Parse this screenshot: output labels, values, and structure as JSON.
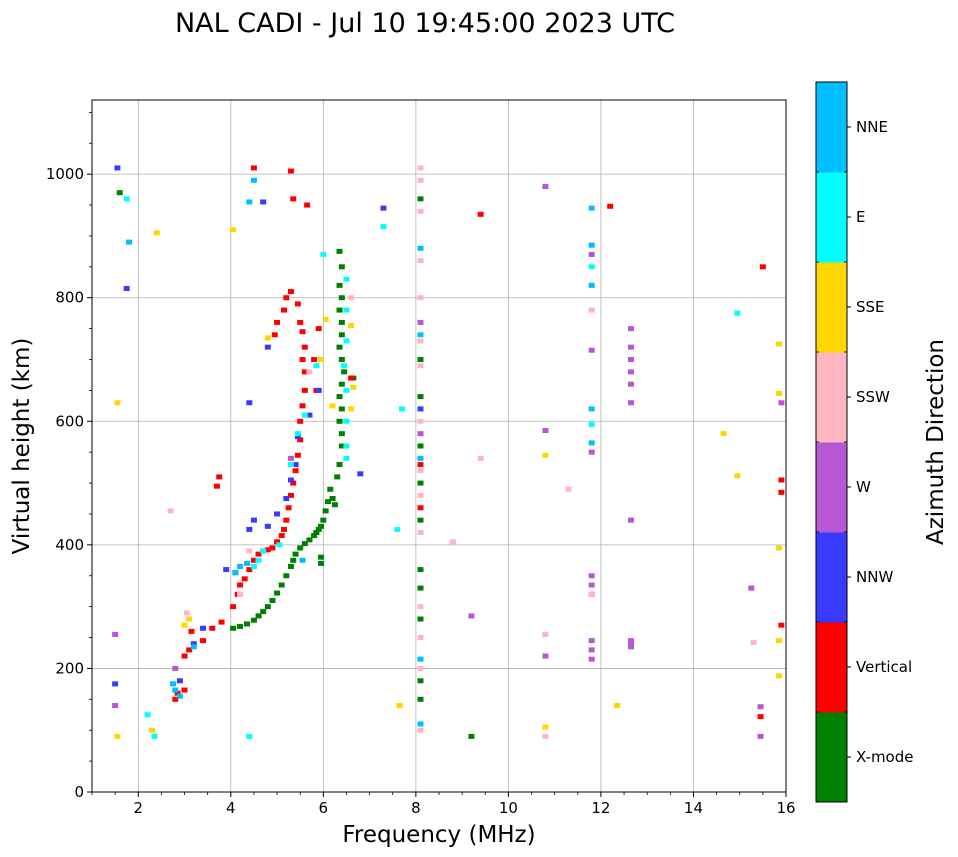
{
  "chart_data": {
    "type": "scatter",
    "title": "NAL CADI - Jul 10 19:45:00 2023 UTC",
    "xlabel": "Frequency (MHz)",
    "ylabel": "Virtual height (km)",
    "xlim": [
      1,
      16
    ],
    "ylim": [
      0,
      1120
    ],
    "xticks": [
      2,
      4,
      6,
      8,
      10,
      12,
      14,
      16
    ],
    "yticks": [
      0,
      200,
      400,
      600,
      800,
      1000
    ],
    "grid": true,
    "colorbar": {
      "label": "Azimuth Direction",
      "categories": [
        {
          "name": "X-mode",
          "color": "#008000"
        },
        {
          "name": "Vertical",
          "color": "#ff0000"
        },
        {
          "name": "NNW",
          "color": "#3a3aff"
        },
        {
          "name": "W",
          "color": "#b657d6"
        },
        {
          "name": "SSW",
          "color": "#ffb6c1"
        },
        {
          "name": "SSE",
          "color": "#ffd700"
        },
        {
          "name": "E",
          "color": "#00ffff"
        },
        {
          "name": "NNE",
          "color": "#00bfff"
        }
      ]
    },
    "series": [
      {
        "name": "X-mode",
        "points": [
          [
            4.05,
            265
          ],
          [
            4.2,
            268
          ],
          [
            4.35,
            272
          ],
          [
            4.5,
            278
          ],
          [
            4.6,
            285
          ],
          [
            4.7,
            292
          ],
          [
            4.8,
            300
          ],
          [
            4.9,
            310
          ],
          [
            5.0,
            322
          ],
          [
            5.1,
            335
          ],
          [
            5.2,
            350
          ],
          [
            5.3,
            365
          ],
          [
            5.35,
            375
          ],
          [
            5.4,
            385
          ],
          [
            5.5,
            395
          ],
          [
            5.6,
            402
          ],
          [
            5.7,
            408
          ],
          [
            5.8,
            415
          ],
          [
            5.85,
            420
          ],
          [
            5.9,
            425
          ],
          [
            5.95,
            430
          ],
          [
            6.0,
            440
          ],
          [
            6.05,
            455
          ],
          [
            6.1,
            470
          ],
          [
            6.15,
            490
          ],
          [
            6.2,
            475
          ],
          [
            6.25,
            465
          ],
          [
            5.95,
            380
          ],
          [
            5.95,
            370
          ],
          [
            6.3,
            510
          ],
          [
            6.35,
            530
          ],
          [
            6.4,
            560
          ],
          [
            6.4,
            580
          ],
          [
            6.35,
            600
          ],
          [
            6.4,
            620
          ],
          [
            6.35,
            640
          ],
          [
            6.4,
            660
          ],
          [
            6.45,
            680
          ],
          [
            6.4,
            700
          ],
          [
            6.35,
            720
          ],
          [
            6.4,
            740
          ],
          [
            6.4,
            760
          ],
          [
            6.35,
            780
          ],
          [
            6.4,
            800
          ],
          [
            6.35,
            820
          ],
          [
            6.4,
            850
          ],
          [
            6.35,
            875
          ],
          [
            6.65,
            670
          ],
          [
            1.6,
            970
          ],
          [
            8.1,
            700
          ],
          [
            8.1,
            640
          ],
          [
            8.1,
            560
          ],
          [
            8.1,
            500
          ],
          [
            8.1,
            440
          ],
          [
            8.1,
            360
          ],
          [
            8.1,
            330
          ],
          [
            8.1,
            280
          ],
          [
            8.1,
            180
          ],
          [
            8.1,
            150
          ],
          [
            8.1,
            960
          ],
          [
            9.2,
            90
          ]
        ]
      },
      {
        "name": "Vertical",
        "points": [
          [
            2.8,
            150
          ],
          [
            2.85,
            160
          ],
          [
            3.0,
            165
          ],
          [
            3.0,
            220
          ],
          [
            3.1,
            230
          ],
          [
            3.15,
            260
          ],
          [
            3.4,
            245
          ],
          [
            3.6,
            265
          ],
          [
            3.8,
            275
          ],
          [
            4.05,
            300
          ],
          [
            4.15,
            320
          ],
          [
            4.2,
            335
          ],
          [
            4.3,
            345
          ],
          [
            4.4,
            360
          ],
          [
            4.5,
            375
          ],
          [
            4.6,
            385
          ],
          [
            4.7,
            390
          ],
          [
            4.8,
            392
          ],
          [
            4.9,
            395
          ],
          [
            5.0,
            405
          ],
          [
            5.1,
            415
          ],
          [
            5.15,
            425
          ],
          [
            5.2,
            440
          ],
          [
            5.25,
            460
          ],
          [
            5.3,
            480
          ],
          [
            5.35,
            500
          ],
          [
            5.4,
            520
          ],
          [
            5.45,
            545
          ],
          [
            5.5,
            570
          ],
          [
            5.5,
            600
          ],
          [
            5.55,
            625
          ],
          [
            5.6,
            650
          ],
          [
            5.6,
            680
          ],
          [
            5.55,
            700
          ],
          [
            5.6,
            720
          ],
          [
            5.55,
            745
          ],
          [
            5.5,
            760
          ],
          [
            5.45,
            790
          ],
          [
            5.3,
            810
          ],
          [
            5.2,
            800
          ],
          [
            5.15,
            780
          ],
          [
            5.0,
            760
          ],
          [
            4.95,
            740
          ],
          [
            5.8,
            700
          ],
          [
            5.85,
            650
          ],
          [
            5.9,
            750
          ],
          [
            6.6,
            670
          ],
          [
            3.7,
            495
          ],
          [
            3.75,
            510
          ],
          [
            4.5,
            1010
          ],
          [
            5.3,
            1005
          ],
          [
            5.35,
            960
          ],
          [
            5.65,
            950
          ],
          [
            9.4,
            935
          ],
          [
            12.2,
            948
          ],
          [
            15.5,
            850
          ],
          [
            15.9,
            505
          ],
          [
            15.9,
            485
          ],
          [
            15.9,
            270
          ],
          [
            15.45,
            122
          ],
          [
            8.1,
            530
          ],
          [
            8.1,
            460
          ]
        ]
      },
      {
        "name": "NNW",
        "points": [
          [
            1.5,
            175
          ],
          [
            2.9,
            180
          ],
          [
            3.2,
            240
          ],
          [
            3.4,
            265
          ],
          [
            3.9,
            360
          ],
          [
            4.1,
            355
          ],
          [
            4.4,
            425
          ],
          [
            4.5,
            440
          ],
          [
            4.8,
            430
          ],
          [
            5.0,
            450
          ],
          [
            5.2,
            475
          ],
          [
            5.3,
            505
          ],
          [
            5.4,
            530
          ],
          [
            5.45,
            575
          ],
          [
            5.7,
            610
          ],
          [
            5.9,
            650
          ],
          [
            4.8,
            720
          ],
          [
            4.4,
            630
          ],
          [
            6.8,
            515
          ],
          [
            7.3,
            945
          ],
          [
            1.75,
            815
          ],
          [
            8.1,
            620
          ],
          [
            1.55,
            1010
          ],
          [
            4.7,
            955
          ]
        ]
      },
      {
        "name": "W",
        "points": [
          [
            1.5,
            255
          ],
          [
            1.5,
            140
          ],
          [
            2.8,
            200
          ],
          [
            5.3,
            540
          ],
          [
            10.8,
            980
          ],
          [
            10.8,
            585
          ],
          [
            11.8,
            870
          ],
          [
            11.8,
            715
          ],
          [
            11.8,
            550
          ],
          [
            11.8,
            350
          ],
          [
            11.8,
            335
          ],
          [
            11.8,
            320
          ],
          [
            11.8,
            245
          ],
          [
            11.8,
            230
          ],
          [
            11.8,
            215
          ],
          [
            12.65,
            750
          ],
          [
            12.65,
            720
          ],
          [
            12.65,
            700
          ],
          [
            12.65,
            680
          ],
          [
            12.65,
            660
          ],
          [
            12.65,
            630
          ],
          [
            12.65,
            440
          ],
          [
            12.65,
            245
          ],
          [
            12.65,
            235
          ],
          [
            12.65,
            240
          ],
          [
            9.2,
            285
          ],
          [
            10.8,
            220
          ],
          [
            15.25,
            330
          ],
          [
            15.45,
            90
          ],
          [
            15.45,
            138
          ],
          [
            15.9,
            630
          ],
          [
            8.1,
            580
          ],
          [
            8.1,
            760
          ]
        ]
      },
      {
        "name": "SSW",
        "points": [
          [
            4.2,
            320
          ],
          [
            4.4,
            390
          ],
          [
            5.7,
            680
          ],
          [
            6.6,
            800
          ],
          [
            8.1,
            1010
          ],
          [
            8.1,
            990
          ],
          [
            8.1,
            940
          ],
          [
            8.1,
            860
          ],
          [
            8.1,
            800
          ],
          [
            8.1,
            730
          ],
          [
            8.1,
            690
          ],
          [
            8.1,
            600
          ],
          [
            8.1,
            520
          ],
          [
            8.1,
            480
          ],
          [
            8.1,
            420
          ],
          [
            8.1,
            300
          ],
          [
            8.1,
            250
          ],
          [
            8.1,
            200
          ],
          [
            8.1,
            100
          ],
          [
            8.8,
            405
          ],
          [
            9.4,
            540
          ],
          [
            10.8,
            255
          ],
          [
            10.8,
            90
          ],
          [
            11.3,
            490
          ],
          [
            11.8,
            780
          ],
          [
            11.8,
            320
          ],
          [
            15.3,
            242
          ],
          [
            2.7,
            455
          ],
          [
            3.05,
            290
          ]
        ]
      },
      {
        "name": "SSE",
        "points": [
          [
            1.55,
            90
          ],
          [
            1.55,
            630
          ],
          [
            2.3,
            100
          ],
          [
            2.4,
            905
          ],
          [
            3.0,
            270
          ],
          [
            3.1,
            280
          ],
          [
            4.05,
            910
          ],
          [
            4.8,
            735
          ],
          [
            5.95,
            700
          ],
          [
            6.05,
            765
          ],
          [
            6.2,
            625
          ],
          [
            6.6,
            620
          ],
          [
            6.65,
            655
          ],
          [
            6.6,
            755
          ],
          [
            7.65,
            140
          ],
          [
            10.8,
            545
          ],
          [
            10.8,
            105
          ],
          [
            12.35,
            140
          ],
          [
            14.65,
            580
          ],
          [
            14.95,
            512
          ],
          [
            15.85,
            725
          ],
          [
            15.85,
            645
          ],
          [
            15.85,
            395
          ],
          [
            15.85,
            245
          ],
          [
            15.85,
            188
          ]
        ]
      },
      {
        "name": "E",
        "points": [
          [
            2.2,
            125
          ],
          [
            2.35,
            90
          ],
          [
            4.4,
            90
          ],
          [
            4.5,
            365
          ],
          [
            4.6,
            375
          ],
          [
            4.7,
            390
          ],
          [
            5.05,
            400
          ],
          [
            5.3,
            530
          ],
          [
            5.45,
            580
          ],
          [
            5.6,
            610
          ],
          [
            5.85,
            690
          ],
          [
            6.0,
            870
          ],
          [
            6.5,
            780
          ],
          [
            6.5,
            730
          ],
          [
            6.45,
            690
          ],
          [
            6.5,
            650
          ],
          [
            6.5,
            600
          ],
          [
            6.5,
            560
          ],
          [
            6.5,
            540
          ],
          [
            6.5,
            830
          ],
          [
            7.7,
            620
          ],
          [
            7.6,
            425
          ],
          [
            7.3,
            915
          ],
          [
            11.8,
            850
          ],
          [
            11.8,
            595
          ],
          [
            14.95,
            775
          ],
          [
            1.75,
            960
          ]
        ]
      },
      {
        "name": "NNE",
        "points": [
          [
            2.75,
            175
          ],
          [
            2.8,
            165
          ],
          [
            2.9,
            155
          ],
          [
            3.2,
            235
          ],
          [
            4.1,
            355
          ],
          [
            4.2,
            365
          ],
          [
            4.35,
            370
          ],
          [
            4.4,
            955
          ],
          [
            4.5,
            990
          ],
          [
            1.8,
            890
          ],
          [
            8.1,
            880
          ],
          [
            8.1,
            740
          ],
          [
            8.1,
            540
          ],
          [
            8.1,
            215
          ],
          [
            8.1,
            110
          ],
          [
            11.8,
            945
          ],
          [
            11.8,
            885
          ],
          [
            11.8,
            820
          ],
          [
            11.8,
            620
          ],
          [
            11.8,
            565
          ],
          [
            5.55,
            375
          ]
        ]
      }
    ]
  }
}
